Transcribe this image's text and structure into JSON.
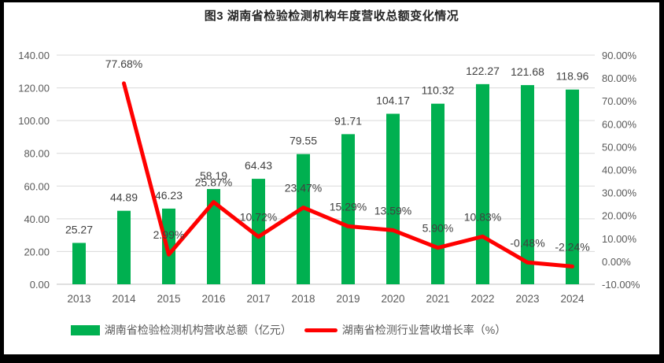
{
  "chart_data": {
    "type": "bar+line combo",
    "title": "图3 湖南省检验检测机构年度营收总额变化情况",
    "categories": [
      "2013",
      "2014",
      "2015",
      "2016",
      "2017",
      "2018",
      "2019",
      "2020",
      "2021",
      "2022",
      "2023",
      "2024"
    ],
    "series": [
      {
        "name": "湖南省检验检测机构营收总额（亿元）",
        "type": "bar",
        "axis": "left",
        "color": "#00B050",
        "values": [
          25.27,
          44.89,
          46.23,
          58.19,
          64.43,
          79.55,
          91.71,
          104.17,
          110.32,
          122.27,
          121.68,
          118.96
        ],
        "data_labels": [
          "25.27",
          "44.89",
          "46.23",
          "58.19",
          "64.43",
          "79.55",
          "91.71",
          "104.17",
          "110.32",
          "122.27",
          "121.68",
          "118.96"
        ]
      },
      {
        "name": "湖南省检测行业营收增长率（%）",
        "type": "line",
        "axis": "right",
        "color": "#FF0000",
        "values": [
          null,
          77.68,
          2.99,
          25.87,
          10.72,
          23.47,
          15.29,
          13.59,
          5.9,
          10.83,
          -0.48,
          -2.24
        ],
        "data_labels": [
          null,
          "77.68%",
          "2.99%",
          "25.87%",
          "10.72%",
          "23.47%",
          "15.29%",
          "13.59%",
          "5.90%",
          "10.83%",
          "-0.48%",
          "-2.24%"
        ]
      }
    ],
    "left_axis": {
      "min": 0,
      "max": 140,
      "step": 20,
      "tick_labels": [
        "0.00",
        "20.00",
        "40.00",
        "60.00",
        "80.00",
        "100.00",
        "120.00",
        "140.00"
      ]
    },
    "right_axis": {
      "min": -10,
      "max": 90,
      "step": 10,
      "tick_labels": [
        "-10.00%",
        "0.00%",
        "10.00%",
        "20.00%",
        "30.00%",
        "40.00%",
        "50.00%",
        "60.00%",
        "70.00%",
        "80.00%",
        "90.00%"
      ]
    },
    "grid": true,
    "legend_position": "bottom",
    "colors": {
      "gridline": "#D9D9D9",
      "axis_line": "#BFBFBF",
      "axis_text": "#595959",
      "label_text": "#404040",
      "frame_border": "#000000"
    }
  }
}
